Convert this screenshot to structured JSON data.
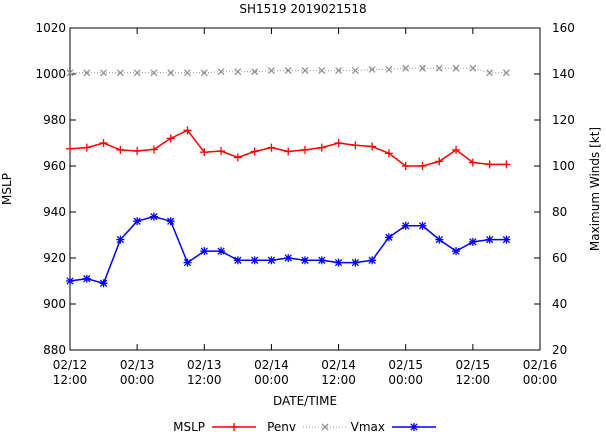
{
  "chart_data": {
    "type": "line",
    "title": "SH1519 2019021518",
    "xlabel": "DATE/TIME",
    "ylabel": "MSLP",
    "y2label": "Maximum Winds [kt]",
    "x_ticks": [
      {
        "hours": 0,
        "line1": "02/12",
        "line2": "12:00"
      },
      {
        "hours": 12,
        "line1": "02/13",
        "line2": "00:00"
      },
      {
        "hours": 24,
        "line1": "02/13",
        "line2": "12:00"
      },
      {
        "hours": 36,
        "line1": "02/14",
        "line2": "00:00"
      },
      {
        "hours": 48,
        "line1": "02/14",
        "line2": "12:00"
      },
      {
        "hours": 60,
        "line1": "02/15",
        "line2": "00:00"
      },
      {
        "hours": 72,
        "line1": "02/15",
        "line2": "12:00"
      },
      {
        "hours": 84,
        "line1": "02/16",
        "line2": "00:00"
      }
    ],
    "xlim": [
      0,
      84
    ],
    "ylim": [
      880,
      1020
    ],
    "y_ticks": [
      880,
      900,
      920,
      940,
      960,
      980,
      1000,
      1020
    ],
    "y2lim": [
      20,
      160
    ],
    "y2_ticks": [
      20,
      40,
      60,
      80,
      100,
      120,
      140,
      160
    ],
    "x_hours": [
      0,
      3,
      6,
      9,
      12,
      15,
      18,
      21,
      24,
      27,
      30,
      33,
      36,
      39,
      42,
      45,
      48,
      51,
      54,
      57,
      60,
      63,
      66,
      69,
      72,
      75,
      78
    ],
    "series": [
      {
        "name": "MSLP",
        "legend_label": "MSLP",
        "axis": "y1",
        "color": "#ff0000",
        "marker": "plus",
        "dash": "",
        "values": [
          967.5,
          968,
          970,
          967,
          966.5,
          967.2,
          972,
          975.5,
          966,
          966.5,
          963.7,
          966.3,
          968,
          966.3,
          967,
          968,
          970,
          969,
          968.5,
          965.5,
          960,
          960,
          962,
          967,
          961.5,
          960.7,
          960.7
        ]
      },
      {
        "name": "Penv",
        "legend_label": "Penv",
        "axis": "y1",
        "color": "#909090",
        "marker": "x",
        "dash": "1,2",
        "values": [
          1000.5,
          1000.5,
          1000.5,
          1000.5,
          1000.5,
          1000.5,
          1000.5,
          1000.5,
          1000.5,
          1001,
          1001,
          1001,
          1001.5,
          1001.5,
          1001.5,
          1001.5,
          1001.5,
          1001.5,
          1002,
          1002,
          1002.5,
          1002.5,
          1002.5,
          1002.5,
          1002.5,
          1000.5,
          1000.5
        ]
      },
      {
        "name": "Vmax",
        "legend_label": "Vmax",
        "axis": "y2",
        "color": "#0000ff",
        "marker": "star",
        "dash": "",
        "values": [
          50,
          51,
          49,
          68,
          76,
          78,
          76,
          58,
          63,
          63,
          59,
          59,
          59,
          60,
          59,
          59,
          58,
          58,
          59,
          69,
          74,
          74,
          68,
          63,
          67,
          68,
          68
        ]
      }
    ],
    "legend_position": "bottom"
  }
}
